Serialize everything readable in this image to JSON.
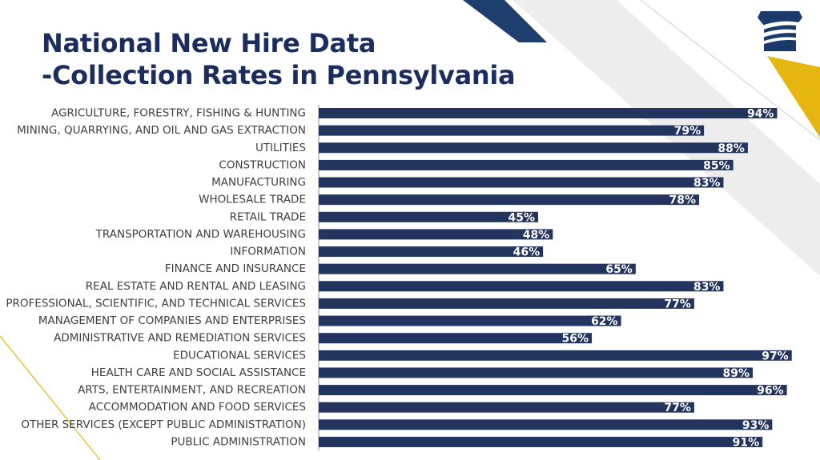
{
  "slide": {
    "title_line1": "National New Hire Data",
    "title_line2": "-Collection Rates in Pennsylvania"
  },
  "colors": {
    "title": "#1b2d5e",
    "bar": "#23345f",
    "navy_stripe": "#1e3f6e",
    "gold_stripe": "#e5b60f",
    "gray_band": "#ededed",
    "category_text": "#3f3f3f",
    "value_text": "#ffffff"
  },
  "logo": {
    "icon": "keystone-logo-icon"
  },
  "chart_data": {
    "type": "bar",
    "orientation": "horizontal",
    "title": "National New Hire Data -Collection Rates in Pennsylvania",
    "xlabel": "",
    "ylabel": "",
    "xlim": [
      0,
      100
    ],
    "grid": false,
    "legend": "none",
    "categories": [
      "AGRICULTURE, FORESTRY, FISHING & HUNTING",
      "MINING, QUARRYING, AND OIL AND GAS EXTRACTION",
      "UTILITIES",
      "CONSTRUCTION",
      "MANUFACTURING",
      "WHOLESALE TRADE",
      "RETAIL TRADE",
      "TRANSPORTATION AND WAREHOUSING",
      "INFORMATION",
      "FINANCE AND INSURANCE",
      "REAL ESTATE AND RENTAL AND LEASING",
      "PROFESSIONAL, SCIENTIFIC, AND TECHNICAL SERVICES",
      "MANAGEMENT OF COMPANIES AND ENTERPRISES",
      "ADMINISTRATIVE AND REMEDIATION SERVICES",
      "EDUCATIONAL SERVICES",
      "HEALTH CARE AND SOCIAL ASSISTANCE",
      "ARTS, ENTERTAINMENT, AND RECREATION",
      "ACCOMMODATION AND FOOD SERVICES",
      "OTHER SERVICES (EXCEPT PUBLIC ADMINISTRATION)",
      "PUBLIC ADMINISTRATION"
    ],
    "values": [
      94,
      79,
      88,
      85,
      83,
      78,
      45,
      48,
      46,
      65,
      83,
      77,
      62,
      56,
      97,
      89,
      96,
      77,
      93,
      91
    ],
    "labels": [
      "94%",
      "79%",
      "88%",
      "85%",
      "83%",
      "78%",
      "45%",
      "48%",
      "46%",
      "65%",
      "83%",
      "77%",
      "62%",
      "56%",
      "97%",
      "89%",
      "96%",
      "77%",
      "93%",
      "91%"
    ]
  }
}
